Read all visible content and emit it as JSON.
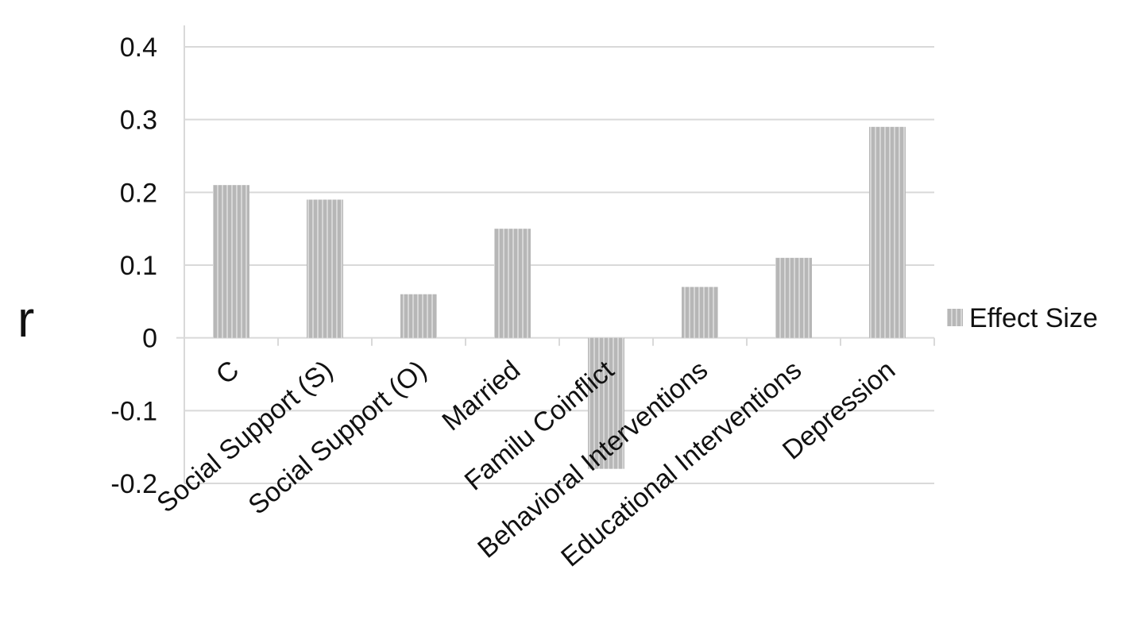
{
  "chart_data": {
    "type": "bar",
    "title": "",
    "xlabel": "",
    "ylabel": "r",
    "categories": [
      "C",
      "Social Support (S)",
      "Social Support (O)",
      "Married",
      "Familu Coinflict",
      "Behavioral Interventions",
      "Educational Interventions",
      "Depression"
    ],
    "series": [
      {
        "name": "Effect Size",
        "values": [
          0.21,
          0.19,
          0.06,
          0.15,
          -0.18,
          0.07,
          0.11,
          0.29
        ]
      }
    ],
    "ylim": [
      -0.2,
      0.4
    ],
    "yticks": [
      "-0.2",
      "-0.1",
      "0",
      "0.1",
      "0.2",
      "0.3",
      "0.4"
    ],
    "ytick_values": [
      -0.2,
      -0.1,
      0,
      0.1,
      0.2,
      0.3,
      0.4
    ],
    "grid": true,
    "legend_position": "right",
    "bar_color": "#b7b7b7",
    "bar_stripe_color": "#d6d6d6",
    "grid_color": "#d9d9d9"
  }
}
